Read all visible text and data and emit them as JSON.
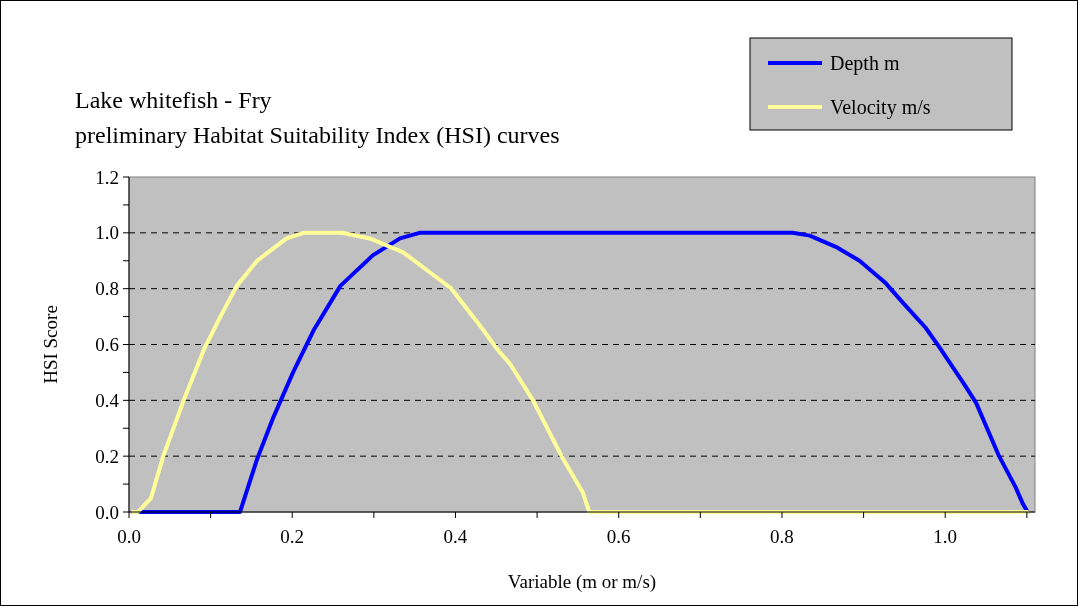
{
  "chart_data": {
    "type": "line",
    "title": "Lake whitefish - Fry",
    "subtitle": "preliminary Habitat Suitability Index (HSI) curves",
    "xlabel": "Variable (m or m/s)",
    "ylabel": "HSI Score",
    "xlim": [
      0,
      1.11
    ],
    "ylim": [
      0,
      1.2
    ],
    "xticks": [
      {
        "value": 0,
        "label": "0.0"
      },
      {
        "value": 0.1,
        "label": null
      },
      {
        "value": 0.2,
        "label": "0.2"
      },
      {
        "value": 0.3,
        "label": null
      },
      {
        "value": 0.4,
        "label": "0.4"
      },
      {
        "value": 0.5,
        "label": null
      },
      {
        "value": 0.6,
        "label": "0.6"
      },
      {
        "value": 0.7,
        "label": null
      },
      {
        "value": 0.8,
        "label": "0.8"
      },
      {
        "value": 0.9,
        "label": null
      },
      {
        "value": 1.0,
        "label": "1.0"
      },
      {
        "value": 1.1,
        "label": null
      }
    ],
    "yticks": [
      {
        "value": 0,
        "label": "0.0"
      },
      {
        "value": 0.1,
        "label": null
      },
      {
        "value": 0.2,
        "label": "0.2"
      },
      {
        "value": 0.3,
        "label": null
      },
      {
        "value": 0.4,
        "label": "0.4"
      },
      {
        "value": 0.5,
        "label": null
      },
      {
        "value": 0.6,
        "label": "0.6"
      },
      {
        "value": 0.7,
        "label": null
      },
      {
        "value": 0.8,
        "label": "0.8"
      },
      {
        "value": 0.9,
        "label": null
      },
      {
        "value": 1.0,
        "label": "1.0"
      },
      {
        "value": 1.1,
        "label": null
      },
      {
        "value": 1.2,
        "label": "1.2"
      }
    ],
    "grid": "y",
    "legend": "top right",
    "marker": "none",
    "line_style": "solid",
    "series": [
      {
        "name": "Depth m",
        "color": "#0000ff",
        "x": [
          0.004,
          0.136,
          0.157,
          0.177,
          0.201,
          0.226,
          0.259,
          0.299,
          0.332,
          0.356,
          0.813,
          0.834,
          0.866,
          0.895,
          0.927,
          0.948,
          0.976,
          0.993,
          1.025,
          1.038,
          1.066,
          1.086,
          1.095,
          1.101
        ],
        "values": [
          0,
          0,
          0.19,
          0.34,
          0.5,
          0.65,
          0.81,
          0.92,
          0.98,
          1,
          1,
          0.99,
          0.95,
          0.9,
          0.82,
          0.75,
          0.66,
          0.59,
          0.45,
          0.39,
          0.2,
          0.09,
          0.03,
          0
        ]
      },
      {
        "name": "Velocity m/s",
        "color": "#ffff99",
        "x": [
          0.004,
          0.011,
          0.027,
          0.042,
          0.067,
          0.093,
          0.112,
          0.132,
          0.157,
          0.193,
          0.214,
          0.261,
          0.295,
          0.336,
          0.377,
          0.395,
          0.432,
          0.452,
          0.467,
          0.495,
          0.53,
          0.556,
          0.564,
          1.101
        ],
        "values": [
          0,
          0,
          0.05,
          0.2,
          0.4,
          0.59,
          0.7,
          0.81,
          0.9,
          0.98,
          1,
          1,
          0.98,
          0.93,
          0.84,
          0.8,
          0.66,
          0.58,
          0.53,
          0.4,
          0.2,
          0.07,
          0,
          0
        ]
      }
    ]
  }
}
